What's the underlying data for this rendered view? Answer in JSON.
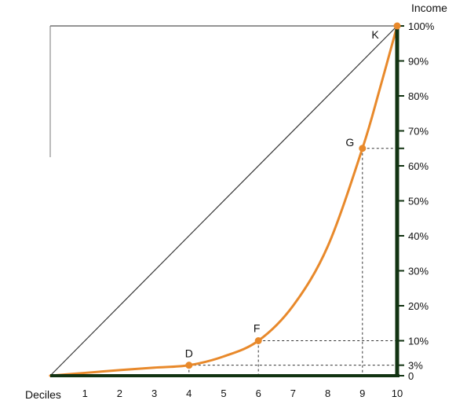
{
  "chart_data": {
    "type": "line",
    "xlabel": "Deciles",
    "ylabel": "Income",
    "xlim": [
      0,
      10
    ],
    "ylim": [
      0,
      100
    ],
    "x_ticks": [
      1,
      2,
      3,
      4,
      5,
      6,
      7,
      8,
      9,
      10
    ],
    "y_ticks": [
      {
        "value": 0,
        "label": "0"
      },
      {
        "value": 3,
        "label": "3%"
      },
      {
        "value": 10,
        "label": "10%"
      },
      {
        "value": 20,
        "label": "20%"
      },
      {
        "value": 30,
        "label": "30%"
      },
      {
        "value": 40,
        "label": "40%"
      },
      {
        "value": 50,
        "label": "50%"
      },
      {
        "value": 60,
        "label": "60%"
      },
      {
        "value": 65,
        "label": ""
      },
      {
        "value": 70,
        "label": "70%"
      },
      {
        "value": 80,
        "label": "80%"
      },
      {
        "value": 90,
        "label": "90%"
      },
      {
        "value": 100,
        "label": "100%"
      }
    ],
    "series": [
      {
        "color": "#E8892B",
        "x": [
          0,
          1,
          2,
          3,
          4,
          5,
          6,
          7,
          8,
          9,
          9.5,
          10
        ],
        "y": [
          0,
          0.8,
          1.6,
          2.3,
          3,
          5.5,
          10,
          20,
          37,
          65,
          82,
          100
        ]
      }
    ],
    "equality_line": {
      "x": [
        0,
        10
      ],
      "y": [
        0,
        100
      ],
      "color": "#333333"
    },
    "points": [
      {
        "label": "D",
        "x": 4,
        "y": 3
      },
      {
        "label": "F",
        "x": 6,
        "y": 10
      },
      {
        "label": "G",
        "x": 9,
        "y": 65
      },
      {
        "label": "K",
        "x": 10,
        "y": 100
      }
    ],
    "grid": false,
    "colors": {
      "curve": "#E8892B",
      "axis": "#123312",
      "line": "#333333"
    }
  }
}
